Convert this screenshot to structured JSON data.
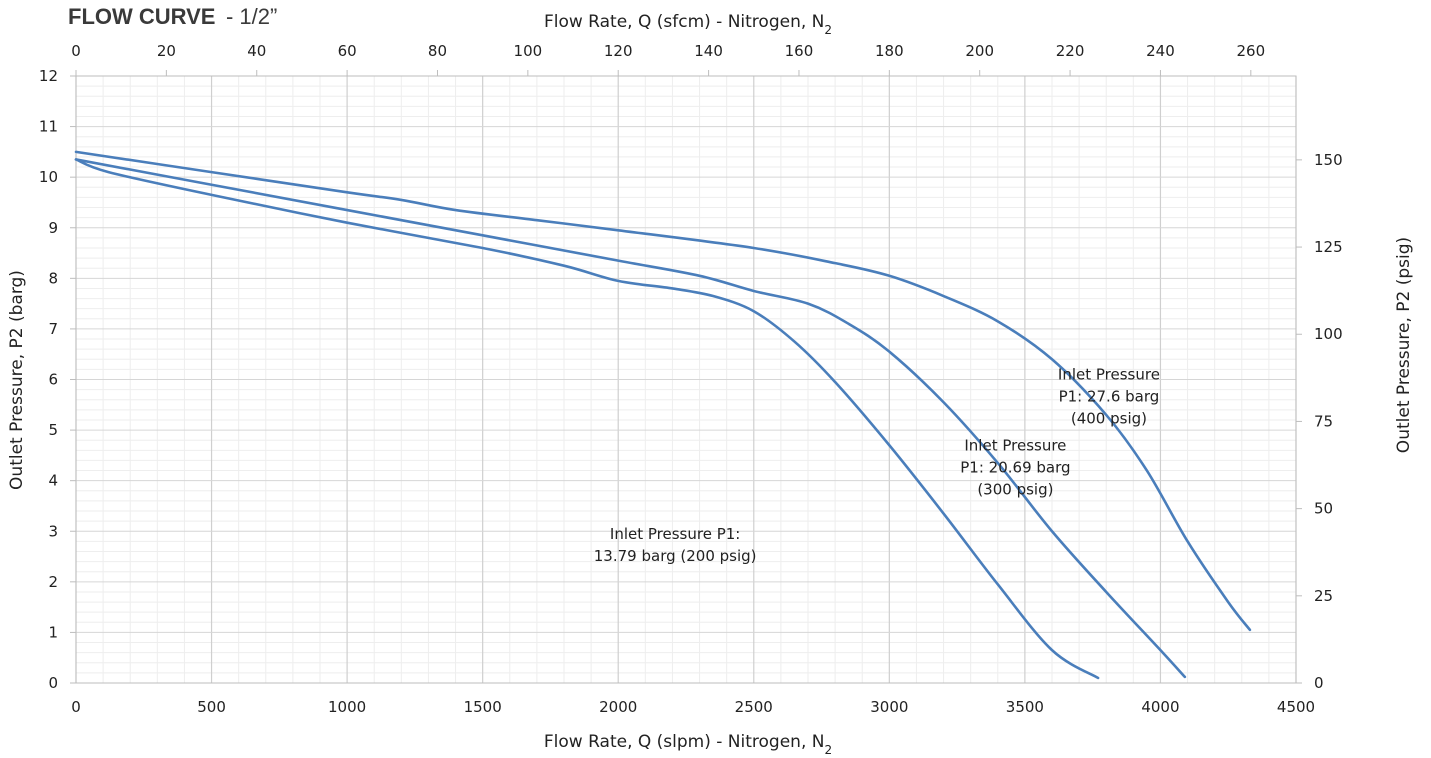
{
  "chart_data": {
    "type": "line",
    "title": "FLOW CURVE",
    "subtitle": "- 1/2”",
    "xlabel_bottom": "Flow Rate, Q (slpm) - Nitrogen, N",
    "xlabel_bottom_sub": "2",
    "xlabel_top": "Flow Rate, Q (sfcm) - Nitrogen, N",
    "xlabel_top_sub": "2",
    "ylabel_left": "Outlet Pressure, P2 (barg)",
    "ylabel_right": "Outlet Pressure, P2 (psig)",
    "xlim": [
      0,
      4500
    ],
    "ylim": [
      0,
      12
    ],
    "x_ticks": [
      0,
      500,
      1000,
      1500,
      2000,
      2500,
      3000,
      3500,
      4000,
      4500
    ],
    "y_ticks": [
      0,
      1,
      2,
      3,
      4,
      5,
      6,
      7,
      8,
      9,
      10,
      11,
      12
    ],
    "x_top_ticks": [
      0,
      20,
      40,
      60,
      80,
      100,
      120,
      140,
      160,
      180,
      200,
      220,
      240,
      260
    ],
    "y_right_ticks": [
      0,
      25,
      50,
      75,
      100,
      125,
      150
    ],
    "grid": true,
    "line_color": "#4a7ebb",
    "series": [
      {
        "name": "Inlet Pressure P1: 13.79 barg (200 psig)",
        "label_lines": [
          "Inlet Pressure P1:",
          "13.79 barg (200 psig)"
        ],
        "points": [
          [
            0,
            10.35
          ],
          [
            120,
            10.1
          ],
          [
            500,
            9.65
          ],
          [
            1000,
            9.1
          ],
          [
            1500,
            8.6
          ],
          [
            1800,
            8.25
          ],
          [
            2000,
            7.95
          ],
          [
            2200,
            7.8
          ],
          [
            2350,
            7.65
          ],
          [
            2500,
            7.35
          ],
          [
            2650,
            6.75
          ],
          [
            2800,
            5.95
          ],
          [
            3000,
            4.7
          ],
          [
            3200,
            3.35
          ],
          [
            3400,
            1.95
          ],
          [
            3600,
            0.65
          ],
          [
            3770,
            0.1
          ]
        ]
      },
      {
        "name": "Inlet Pressure P1: 20.69 barg (300 psig)",
        "label_lines": [
          "Inlet Pressure",
          "P1: 20.69 barg",
          "(300 psig)"
        ],
        "points": [
          [
            0,
            10.35
          ],
          [
            500,
            9.85
          ],
          [
            1000,
            9.35
          ],
          [
            1500,
            8.85
          ],
          [
            2000,
            8.35
          ],
          [
            2300,
            8.05
          ],
          [
            2500,
            7.75
          ],
          [
            2700,
            7.5
          ],
          [
            2850,
            7.1
          ],
          [
            3000,
            6.55
          ],
          [
            3200,
            5.55
          ],
          [
            3400,
            4.35
          ],
          [
            3600,
            3.0
          ],
          [
            3800,
            1.8
          ],
          [
            4000,
            0.65
          ],
          [
            4090,
            0.12
          ]
        ]
      },
      {
        "name": "Inlet Pressure P1: 27.6 barg (400 psig)",
        "label_lines": [
          "Inlet Pressure",
          "P1: 27.6 barg",
          "(400 psig)"
        ],
        "points": [
          [
            0,
            10.5
          ],
          [
            500,
            10.1
          ],
          [
            1000,
            9.7
          ],
          [
            1200,
            9.55
          ],
          [
            1400,
            9.35
          ],
          [
            1700,
            9.15
          ],
          [
            2000,
            8.95
          ],
          [
            2500,
            8.6
          ],
          [
            2800,
            8.3
          ],
          [
            3000,
            8.05
          ],
          [
            3200,
            7.65
          ],
          [
            3400,
            7.15
          ],
          [
            3600,
            6.4
          ],
          [
            3800,
            5.3
          ],
          [
            3950,
            4.2
          ],
          [
            4100,
            2.8
          ],
          [
            4250,
            1.6
          ],
          [
            4330,
            1.05
          ]
        ]
      }
    ]
  }
}
